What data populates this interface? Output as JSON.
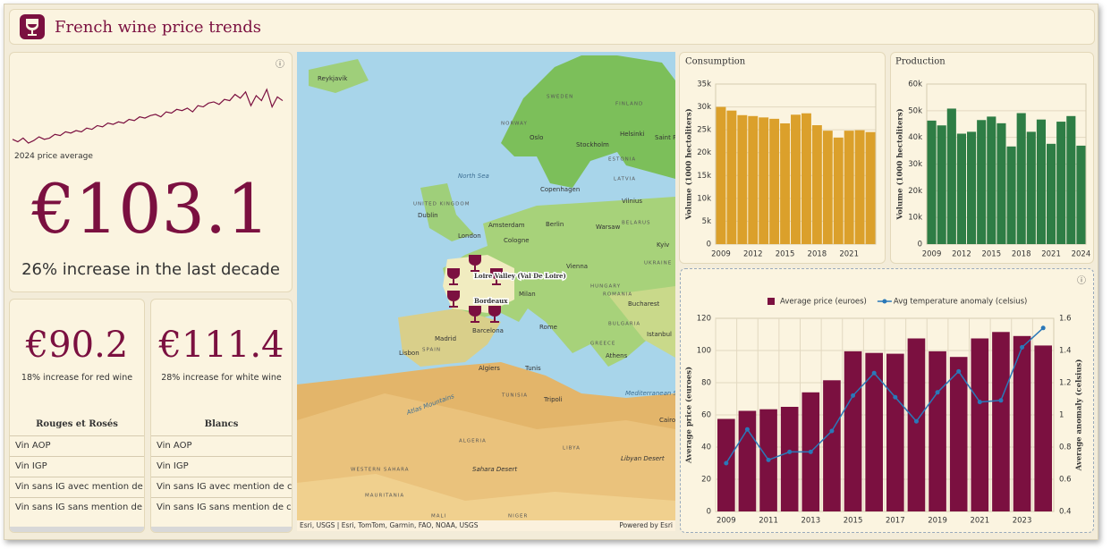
{
  "header": {
    "title": "French wine price trends"
  },
  "summary": {
    "label": "2024 price average",
    "value": "€103.1",
    "change": "26% increase in the last decade"
  },
  "red": {
    "value": "€90.2",
    "change": "18% increase for red wine",
    "list_title": "Rouges et Rosés",
    "items": [
      "Vin AOP",
      "Vin IGP",
      "Vin sans IG avec mention de cépage",
      "Vin sans IG sans mention de cépage"
    ]
  },
  "white": {
    "value": "€111.4",
    "change": "28% increase for white wine",
    "list_title": "Blancs",
    "items": [
      "Vin AOP",
      "Vin IGP",
      "Vin sans IG avec mention de cépage",
      "Vin sans IG sans mention de cépage"
    ]
  },
  "map": {
    "labels": [
      "Reykjavík",
      "NORWAY",
      "SWEDEN",
      "FINLAND",
      "Oslo",
      "Stockholm",
      "Helsinki",
      "Saint P",
      "ESTONIA",
      "North Sea",
      "LATVIA",
      "Copenhagen",
      "Vilnius",
      "UNITED KINGDOM",
      "Dublin",
      "Amsterdam",
      "Berlin",
      "Warsaw",
      "BELARUS",
      "London",
      "Cologne",
      "Kyiv",
      "UKRAINE",
      "Vienna",
      "HUNGARY",
      "ROMANIA",
      "Milan",
      "Bucharest",
      "BULGARIA",
      "Madrid",
      "SPAIN",
      "Barcelona",
      "Rome",
      "Lisbon",
      "Istanbul",
      "GREECE",
      "Athens",
      "Algiers",
      "Tunis",
      "TUNISIA",
      "Tripoli",
      "Mediterranean Sea",
      "Atlas Mountains",
      "Cairo",
      "ALGERIA",
      "LIBYA",
      "Libyan Desert",
      "Sahara Desert",
      "WESTERN SAHARA",
      "MAURITANIA",
      "MALI",
      "NIGER"
    ],
    "regions": [
      "Loire Valley (Val De Loire)",
      "Bordeaux"
    ],
    "attribution": "Esri, USGS | Esri, TomTom, Garmin, FAO, NOAA, USGS",
    "powered": "Powered by Esri"
  },
  "chart_data": [
    {
      "type": "line",
      "color": "#7b1040",
      "values": [
        66,
        64,
        67,
        63,
        65,
        68,
        66,
        67,
        70,
        69,
        72,
        71,
        73,
        72,
        75,
        74,
        77,
        76,
        79,
        78,
        80,
        79,
        82,
        81,
        84,
        83,
        85,
        86,
        84,
        88,
        87,
        90,
        89,
        91,
        88,
        93,
        92,
        95,
        96,
        94,
        98,
        97,
        102,
        99,
        104,
        93,
        101,
        97,
        106,
        92,
        100,
        97
      ]
    },
    {
      "type": "bar",
      "title": "Consumption",
      "y_label": "Volume (1000 hectoliters)",
      "color": "#dba02b",
      "grid": true,
      "categories": [
        "2009",
        null,
        null,
        "2012",
        null,
        null,
        "2015",
        null,
        null,
        "2018",
        null,
        null,
        "2021",
        null,
        null
      ],
      "values": [
        30000,
        29200,
        28200,
        28000,
        27700,
        27400,
        26400,
        28300,
        28600,
        26000,
        24800,
        23300,
        24800,
        24900,
        24500
      ],
      "ylim": [
        0,
        35000
      ],
      "yticks": [
        0,
        {
          "value": 5000,
          "label": "5k"
        },
        {
          "value": 10000,
          "label": "10k"
        },
        {
          "value": 15000,
          "label": "15k"
        },
        {
          "value": 20000,
          "label": "20k"
        },
        {
          "value": 25000,
          "label": "25k"
        },
        {
          "value": 30000,
          "label": "30k"
        },
        {
          "value": 35000,
          "label": "35k"
        }
      ]
    },
    {
      "type": "bar",
      "title": "Production",
      "y_label": "Volume (1000 hectoliters)",
      "color": "#2e7d45",
      "grid": true,
      "categories": [
        "2009",
        null,
        null,
        "2012",
        null,
        null,
        "2015",
        null,
        null,
        "2018",
        null,
        null,
        "2021",
        null,
        null,
        "2024"
      ],
      "values": [
        46300,
        44500,
        50800,
        41400,
        42100,
        46500,
        47800,
        45300,
        36600,
        49100,
        42100,
        46700,
        37600,
        45900,
        48000,
        36900
      ],
      "ylim": [
        0,
        60000
      ],
      "yticks": [
        0,
        {
          "value": 10000,
          "label": "10k"
        },
        {
          "value": 20000,
          "label": "20k"
        },
        {
          "value": 30000,
          "label": "30k"
        },
        {
          "value": 40000,
          "label": "40k"
        },
        {
          "value": 50000,
          "label": "50k"
        },
        {
          "value": 60000,
          "label": "60k"
        }
      ]
    },
    {
      "type": "combo",
      "y_label": "Average price (euroes)",
      "y2_label": "Average anomaly (celsius)",
      "grid": true,
      "legend": "top",
      "categories": [
        "2009",
        null,
        "2011",
        null,
        "2013",
        null,
        "2015",
        null,
        "2017",
        null,
        "2019",
        null,
        "2021",
        null,
        "2023",
        null
      ],
      "series": [
        {
          "name": "Average price (euroes)",
          "type": "bar",
          "color": "#7b1040",
          "values": [
            57.5,
            62.5,
            63.5,
            65,
            74,
            81.5,
            99.5,
            98.5,
            98,
            107.5,
            99.5,
            96,
            107.5,
            111.5,
            109,
            103.1
          ]
        },
        {
          "name": "Avg temperature anomaly (celsius)",
          "type": "line",
          "axis": "y2",
          "color": "#2a78b8",
          "values": [
            0.7,
            0.91,
            0.72,
            0.77,
            0.77,
            0.9,
            1.12,
            1.26,
            1.11,
            0.96,
            1.14,
            1.27,
            1.08,
            1.09,
            1.42,
            1.54
          ]
        }
      ],
      "ylim": [
        0,
        120
      ],
      "yticks": [
        0,
        20,
        40,
        60,
        80,
        100,
        120
      ],
      "y2lim": [
        0.4,
        1.6
      ],
      "y2ticks": [
        0.4,
        0.6,
        0.8,
        1,
        1.2,
        1.4,
        1.6
      ]
    }
  ]
}
